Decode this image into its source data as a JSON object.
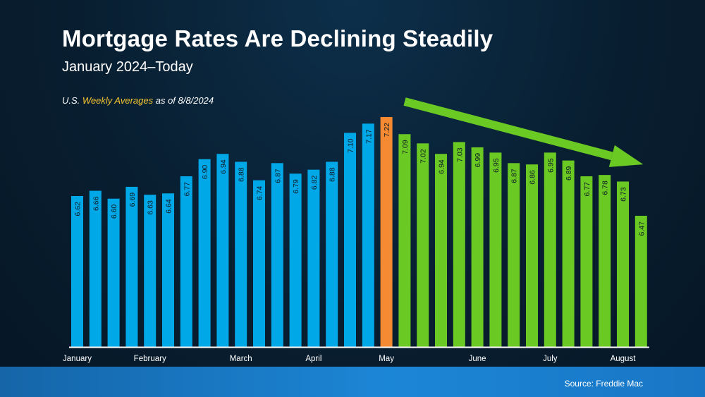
{
  "header": {
    "title": "Mortgage Rates Are Declining Steadily",
    "subtitle": "January 2024–Today",
    "note_prefix": "U.S. ",
    "note_highlight": "Weekly Averages",
    "note_suffix": " as of 8/8/2024"
  },
  "footer": {
    "source": "Source: Freddie Mac"
  },
  "colors": {
    "bar_blue": "#00a8e8",
    "bar_orange": "#f58a32",
    "bar_green": "#6ac922",
    "arrow_green": "#6ac922",
    "highlight": "#f4c430"
  },
  "chart_data": {
    "type": "bar",
    "values": [
      6.62,
      6.66,
      6.6,
      6.69,
      6.63,
      6.64,
      6.77,
      6.9,
      6.94,
      6.88,
      6.74,
      6.87,
      6.79,
      6.82,
      6.88,
      7.1,
      7.17,
      7.22,
      7.09,
      7.02,
      6.94,
      7.03,
      6.99,
      6.95,
      6.87,
      6.86,
      6.95,
      6.89,
      6.77,
      6.78,
      6.73,
      6.47
    ],
    "data_labels": [
      "6.62",
      "6.66",
      "6.60",
      "6.69",
      "6.63",
      "6.64",
      "6.77",
      "6.90",
      "6.94",
      "6.88",
      "6.74",
      "6.87",
      "6.79",
      "6.82",
      "6.88",
      "7.10",
      "7.17",
      "7.22",
      "7.09",
      "7.02",
      "6.94",
      "7.03",
      "6.99",
      "6.95",
      "6.87",
      "6.86",
      "6.95",
      "6.89",
      "6.77",
      "6.78",
      "6.73",
      "6.47"
    ],
    "bar_colors": [
      "blue",
      "blue",
      "blue",
      "blue",
      "blue",
      "blue",
      "blue",
      "blue",
      "blue",
      "blue",
      "blue",
      "blue",
      "blue",
      "blue",
      "blue",
      "blue",
      "blue",
      "orange",
      "green",
      "green",
      "green",
      "green",
      "green",
      "green",
      "green",
      "green",
      "green",
      "green",
      "green",
      "green",
      "green",
      "green"
    ],
    "month_labels": [
      {
        "label": "January",
        "bar_index": 0
      },
      {
        "label": "February",
        "bar_index": 4
      },
      {
        "label": "March",
        "bar_index": 9
      },
      {
        "label": "April",
        "bar_index": 13
      },
      {
        "label": "May",
        "bar_index": 17
      },
      {
        "label": "June",
        "bar_index": 22
      },
      {
        "label": "July",
        "bar_index": 26
      },
      {
        "label": "August",
        "bar_index": 30
      }
    ],
    "trend_arrow": {
      "from_index": 18,
      "to_index": 31,
      "direction": "down"
    },
    "grid": false
  }
}
